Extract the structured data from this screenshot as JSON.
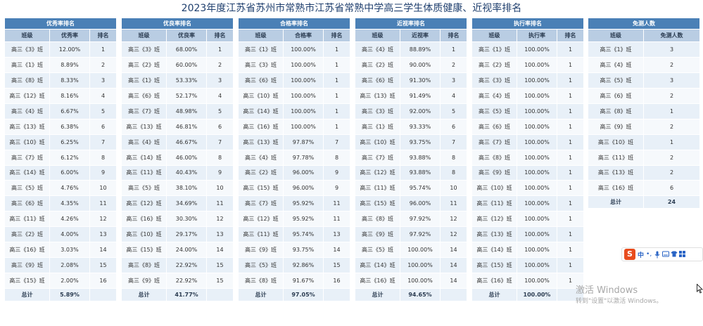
{
  "page": {
    "title": "2023年度江苏省苏州市常熟市江苏省常熟中学高三学生体质健康、近视率排名"
  },
  "tables": [
    {
      "title": "优秀率排名",
      "col1": "班级",
      "col2": "优秀率",
      "col3": "排名",
      "rows": [
        {
          "c": "高三《3》班",
          "v": "12.00%",
          "r": "1"
        },
        {
          "c": "高三《1》班",
          "v": "8.89%",
          "r": "2"
        },
        {
          "c": "高三《8》班",
          "v": "8.33%",
          "r": "3"
        },
        {
          "c": "高三《12》班",
          "v": "8.16%",
          "r": "4"
        },
        {
          "c": "高三《4》班",
          "v": "6.67%",
          "r": "5"
        },
        {
          "c": "高三《13》班",
          "v": "6.38%",
          "r": "6"
        },
        {
          "c": "高三《10》班",
          "v": "6.25%",
          "r": "7"
        },
        {
          "c": "高三《7》班",
          "v": "6.12%",
          "r": "8"
        },
        {
          "c": "高三《14》班",
          "v": "6.00%",
          "r": "9"
        },
        {
          "c": "高三《5》班",
          "v": "4.76%",
          "r": "10"
        },
        {
          "c": "高三《6》班",
          "v": "4.35%",
          "r": "11"
        },
        {
          "c": "高三《11》班",
          "v": "4.26%",
          "r": "12"
        },
        {
          "c": "高三《2》班",
          "v": "4.00%",
          "r": "13"
        },
        {
          "c": "高三《16》班",
          "v": "3.03%",
          "r": "14"
        },
        {
          "c": "高三《9》班",
          "v": "2.08%",
          "r": "15"
        },
        {
          "c": "高三《15》班",
          "v": "2.00%",
          "r": "16"
        }
      ],
      "total_label": "总计",
      "total_value": "5.89%"
    },
    {
      "title": "优良率排名",
      "col1": "班级",
      "col2": "优良率",
      "col3": "排名",
      "rows": [
        {
          "c": "高三《3》班",
          "v": "68.00%",
          "r": "1"
        },
        {
          "c": "高三《2》班",
          "v": "60.00%",
          "r": "2"
        },
        {
          "c": "高三《1》班",
          "v": "53.33%",
          "r": "3"
        },
        {
          "c": "高三《6》班",
          "v": "52.17%",
          "r": "4"
        },
        {
          "c": "高三《7》班",
          "v": "48.98%",
          "r": "5"
        },
        {
          "c": "高三《13》班",
          "v": "46.81%",
          "r": "6"
        },
        {
          "c": "高三《4》班",
          "v": "46.67%",
          "r": "7"
        },
        {
          "c": "高三《14》班",
          "v": "46.00%",
          "r": "8"
        },
        {
          "c": "高三《11》班",
          "v": "40.43%",
          "r": "9"
        },
        {
          "c": "高三《5》班",
          "v": "38.10%",
          "r": "10"
        },
        {
          "c": "高三《12》班",
          "v": "34.69%",
          "r": "11"
        },
        {
          "c": "高三《16》班",
          "v": "30.30%",
          "r": "12"
        },
        {
          "c": "高三《10》班",
          "v": "29.17%",
          "r": "13"
        },
        {
          "c": "高三《15》班",
          "v": "24.00%",
          "r": "14"
        },
        {
          "c": "高三《8》班",
          "v": "22.92%",
          "r": "15"
        },
        {
          "c": "高三《9》班",
          "v": "22.92%",
          "r": "15"
        }
      ],
      "total_label": "总计",
      "total_value": "41.77%"
    },
    {
      "title": "合格率排名",
      "col1": "班级",
      "col2": "合格率",
      "col3": "排名",
      "rows": [
        {
          "c": "高三《1》班",
          "v": "100.00%",
          "r": "1"
        },
        {
          "c": "高三《3》班",
          "v": "100.00%",
          "r": "1"
        },
        {
          "c": "高三《6》班",
          "v": "100.00%",
          "r": "1"
        },
        {
          "c": "高三《10》班",
          "v": "100.00%",
          "r": "1"
        },
        {
          "c": "高三《14》班",
          "v": "100.00%",
          "r": "1"
        },
        {
          "c": "高三《16》班",
          "v": "100.00%",
          "r": "1"
        },
        {
          "c": "高三《13》班",
          "v": "97.87%",
          "r": "7"
        },
        {
          "c": "高三《4》班",
          "v": "97.78%",
          "r": "8"
        },
        {
          "c": "高三《2》班",
          "v": "96.00%",
          "r": "9"
        },
        {
          "c": "高三《15》班",
          "v": "96.00%",
          "r": "9"
        },
        {
          "c": "高三《7》班",
          "v": "95.92%",
          "r": "11"
        },
        {
          "c": "高三《12》班",
          "v": "95.92%",
          "r": "11"
        },
        {
          "c": "高三《11》班",
          "v": "95.74%",
          "r": "13"
        },
        {
          "c": "高三《9》班",
          "v": "93.75%",
          "r": "14"
        },
        {
          "c": "高三《5》班",
          "v": "92.86%",
          "r": "15"
        },
        {
          "c": "高三《8》班",
          "v": "91.67%",
          "r": "16"
        }
      ],
      "total_label": "总计",
      "total_value": "97.05%"
    },
    {
      "title": "近视率排名",
      "col1": "班级",
      "col2": "近视率",
      "col3": "排名",
      "rows": [
        {
          "c": "高三《4》班",
          "v": "88.89%",
          "r": "1"
        },
        {
          "c": "高三《2》班",
          "v": "90.00%",
          "r": "2"
        },
        {
          "c": "高三《6》班",
          "v": "91.30%",
          "r": "3"
        },
        {
          "c": "高三《13》班",
          "v": "91.49%",
          "r": "4"
        },
        {
          "c": "高三《3》班",
          "v": "92.00%",
          "r": "5"
        },
        {
          "c": "高三《1》班",
          "v": "93.33%",
          "r": "6"
        },
        {
          "c": "高三《10》班",
          "v": "93.75%",
          "r": "7"
        },
        {
          "c": "高三《7》班",
          "v": "93.88%",
          "r": "8"
        },
        {
          "c": "高三《12》班",
          "v": "93.88%",
          "r": "8"
        },
        {
          "c": "高三《11》班",
          "v": "95.74%",
          "r": "10"
        },
        {
          "c": "高三《15》班",
          "v": "96.00%",
          "r": "11"
        },
        {
          "c": "高三《8》班",
          "v": "97.92%",
          "r": "12"
        },
        {
          "c": "高三《9》班",
          "v": "97.92%",
          "r": "12"
        },
        {
          "c": "高三《5》班",
          "v": "100.00%",
          "r": "14"
        },
        {
          "c": "高三《14》班",
          "v": "100.00%",
          "r": "14"
        },
        {
          "c": "高三《16》班",
          "v": "100.00%",
          "r": "14"
        }
      ],
      "total_label": "总计",
      "total_value": "94.65%"
    },
    {
      "title": "执行率排名",
      "col1": "班级",
      "col2": "执行率",
      "col3": "排名",
      "rows": [
        {
          "c": "高三《1》班",
          "v": "100.00%",
          "r": "1"
        },
        {
          "c": "高三《2》班",
          "v": "100.00%",
          "r": "1"
        },
        {
          "c": "高三《3》班",
          "v": "100.00%",
          "r": "1"
        },
        {
          "c": "高三《4》班",
          "v": "100.00%",
          "r": "1"
        },
        {
          "c": "高三《5》班",
          "v": "100.00%",
          "r": "1"
        },
        {
          "c": "高三《6》班",
          "v": "100.00%",
          "r": "1"
        },
        {
          "c": "高三《7》班",
          "v": "100.00%",
          "r": "1"
        },
        {
          "c": "高三《8》班",
          "v": "100.00%",
          "r": "1"
        },
        {
          "c": "高三《9》班",
          "v": "100.00%",
          "r": "1"
        },
        {
          "c": "高三《10》班",
          "v": "100.00%",
          "r": "1"
        },
        {
          "c": "高三《11》班",
          "v": "100.00%",
          "r": "1"
        },
        {
          "c": "高三《12》班",
          "v": "100.00%",
          "r": "1"
        },
        {
          "c": "高三《13》班",
          "v": "100.00%",
          "r": "1"
        },
        {
          "c": "高三《14》班",
          "v": "100.00%",
          "r": "1"
        },
        {
          "c": "高三《15》班",
          "v": "100.00%",
          "r": "1"
        },
        {
          "c": "高三《16》班",
          "v": "100.00%",
          "r": "1"
        }
      ],
      "total_label": "总计",
      "total_value": "100.00%"
    }
  ],
  "exempt": {
    "title": "免测人数",
    "col1": "班级",
    "col2": "免测人数",
    "rows": [
      {
        "c": "高三《1》班",
        "v": "3"
      },
      {
        "c": "高三《4》班",
        "v": "2"
      },
      {
        "c": "高三《5》班",
        "v": "3"
      },
      {
        "c": "高三《6》班",
        "v": "2"
      },
      {
        "c": "高三《8》班",
        "v": "1"
      },
      {
        "c": "高三《9》班",
        "v": "2"
      },
      {
        "c": "高三《10》班",
        "v": "1"
      },
      {
        "c": "高三《11》班",
        "v": "2"
      },
      {
        "c": "高三《13》班",
        "v": "2"
      },
      {
        "c": "高三《16》班",
        "v": "6"
      }
    ],
    "total_label": "总计",
    "total_value": "24"
  },
  "toolbar": {
    "logo": "S",
    "lang": "中",
    "punct": "•,",
    "icons": [
      "mic-icon",
      "keyboard-icon",
      "shirt-icon",
      "grid-icon"
    ]
  },
  "watermark": {
    "title": "激活 Windows",
    "subtitle": "转到\"设置\"以激活 Windows。"
  }
}
